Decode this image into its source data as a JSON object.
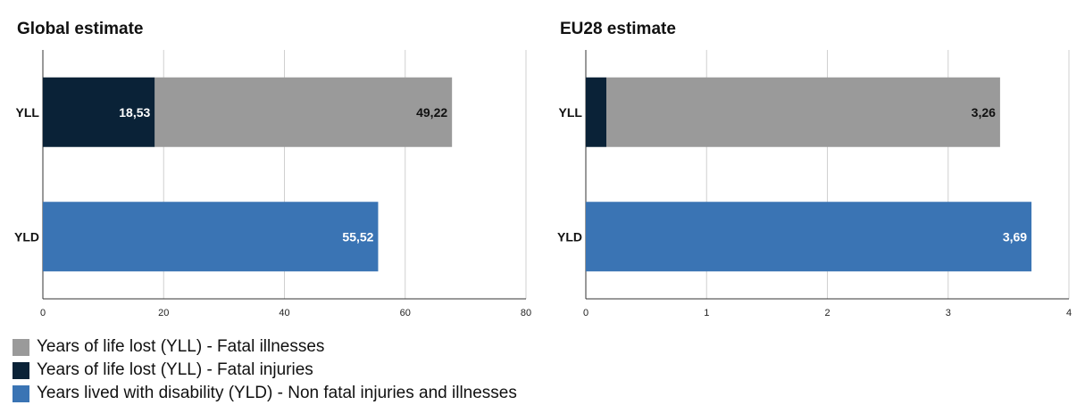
{
  "colors": {
    "fatal_illnesses": "#9a9a9a",
    "fatal_injuries": "#0a2237",
    "yld": "#3a74b4",
    "grid": "#d0d0d0",
    "axis": "#333333"
  },
  "chart_data": [
    {
      "type": "bar",
      "orientation": "horizontal",
      "stacked": true,
      "title": "Global estimate",
      "categories": [
        "YLL",
        "YLD"
      ],
      "xlim": [
        0,
        80
      ],
      "xticks": [
        0,
        20,
        40,
        60,
        80
      ],
      "grid": true,
      "series": [
        {
          "name": "Years of life lost (YLL) - Fatal injuries",
          "values": [
            18.53,
            null
          ],
          "labels": [
            "18,53",
            ""
          ],
          "color": "#0a2237",
          "label_color": "#ffffff"
        },
        {
          "name": "Years of life lost (YLL) - Fatal illnesses",
          "values": [
            49.22,
            null
          ],
          "labels": [
            "49,22",
            ""
          ],
          "color": "#9a9a9a",
          "label_color": "#111111"
        },
        {
          "name": "Years lived with disability (YLD) - Non fatal injuries and illnesses",
          "values": [
            null,
            55.52
          ],
          "labels": [
            "",
            "55,52"
          ],
          "color": "#3a74b4",
          "label_color": "#ffffff"
        }
      ]
    },
    {
      "type": "bar",
      "orientation": "horizontal",
      "stacked": true,
      "title": "EU28 estimate",
      "categories": [
        "YLL",
        "YLD"
      ],
      "xlim": [
        0,
        4
      ],
      "xticks": [
        0,
        1,
        2,
        3,
        4
      ],
      "grid": true,
      "series": [
        {
          "name": "Years of life lost (YLL) - Fatal injuries",
          "values": [
            0.17,
            null
          ],
          "labels": [
            "0,17",
            ""
          ],
          "color": "#0a2237",
          "label_color": "#111111",
          "label_outside": true
        },
        {
          "name": "Years of life lost (YLL) - Fatal illnesses",
          "values": [
            3.26,
            null
          ],
          "labels": [
            "3,26",
            ""
          ],
          "color": "#9a9a9a",
          "label_color": "#111111"
        },
        {
          "name": "Years lived with disability (YLD) - Non fatal injuries and illnesses",
          "values": [
            null,
            3.69
          ],
          "labels": [
            "",
            "3,69"
          ],
          "color": "#3a74b4",
          "label_color": "#ffffff"
        }
      ]
    }
  ],
  "legend": {
    "placement": "bottom-left",
    "items": [
      {
        "label": "Years of life lost (YLL) - Fatal illnesses",
        "color": "#9a9a9a"
      },
      {
        "label": "Years of life lost (YLL) - Fatal injuries",
        "color": "#0a2237"
      },
      {
        "label": "Years lived with disability (YLD) - Non fatal injuries and illnesses",
        "color": "#3a74b4"
      }
    ]
  }
}
